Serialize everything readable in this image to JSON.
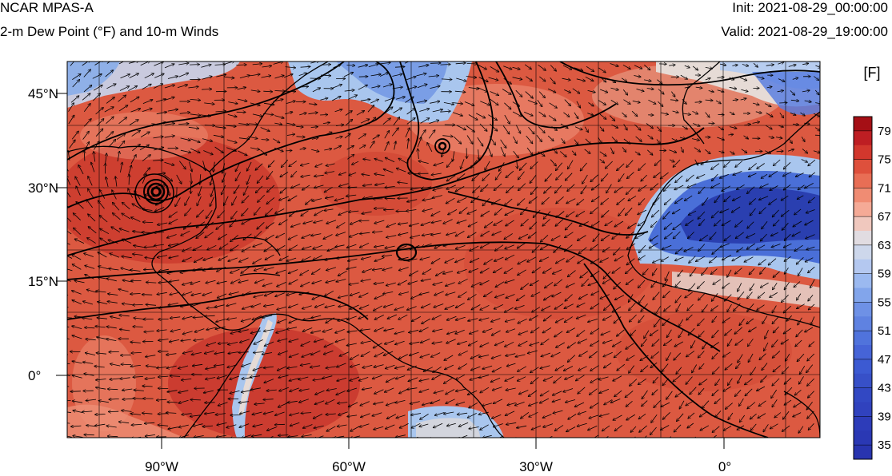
{
  "header": {
    "model": "NCAR MPAS-A",
    "product": "2-m Dew Point (°F) and 10-m Winds",
    "init": "Init: 2021-08-29_00:00:00",
    "valid": "Valid: 2021-08-29_19:00:00"
  },
  "axes": {
    "y_ticks": [
      "45°N",
      "30°N",
      "15°N",
      "0°"
    ],
    "x_ticks": [
      "90°W",
      "60°W",
      "30°W",
      "0°"
    ]
  },
  "colorbar": {
    "units": "[F]",
    "labels": [
      "79",
      "75",
      "71",
      "67",
      "63",
      "59",
      "55",
      "51",
      "47",
      "43",
      "39",
      "35"
    ]
  },
  "palette": {
    "dark_red": "#a50f15",
    "red": "#d9503a",
    "light_red": "#ee8f76",
    "neutral": "#e6dbd6",
    "light_blue": "#a9c6ee",
    "blue": "#4a6fd8",
    "dark_blue": "#2a3fb0"
  }
}
